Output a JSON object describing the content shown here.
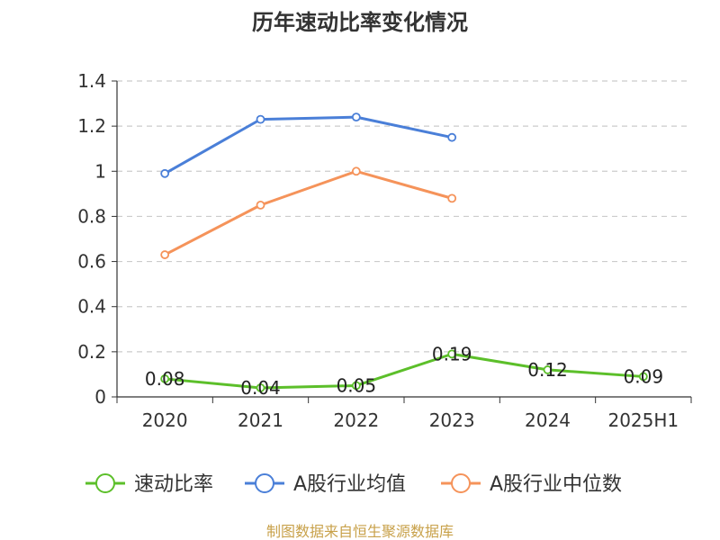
{
  "chart_data": {
    "type": "line",
    "title": "历年速动比率变化情况",
    "categories": [
      "2020",
      "2021",
      "2022",
      "2023",
      "2024",
      "2025H1"
    ],
    "ylim": [
      0,
      1.4
    ],
    "yticks": [
      "0",
      "0.2",
      "0.4",
      "0.6",
      "0.8",
      "1",
      "1.2",
      "1.4"
    ],
    "grid": true,
    "legend_position": "bottom",
    "series": [
      {
        "name": "速动比率",
        "color": "#5cbf2a",
        "values": [
          0.08,
          0.04,
          0.05,
          0.19,
          0.12,
          0.09
        ],
        "labels": [
          "0.08",
          "0.04",
          "0.05",
          "0.19",
          "0.12",
          "0.09"
        ]
      },
      {
        "name": "A股行业均值",
        "color": "#4a7fd8",
        "values": [
          0.99,
          1.23,
          1.24,
          1.15,
          null,
          null
        ]
      },
      {
        "name": "A股行业中位数",
        "color": "#f5935a",
        "values": [
          0.63,
          0.85,
          1.0,
          0.88,
          null,
          null
        ]
      }
    ]
  },
  "footer": {
    "source": "制图数据来自恒生聚源数据库"
  }
}
